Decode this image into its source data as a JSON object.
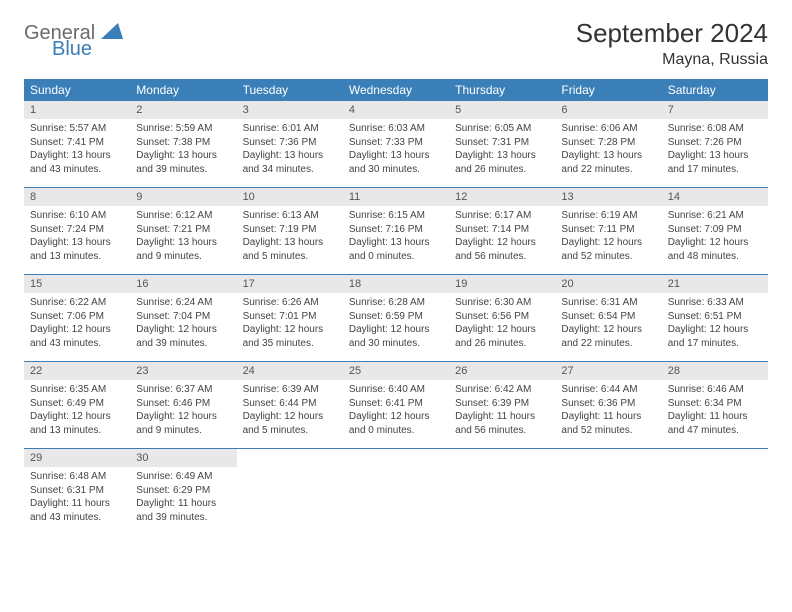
{
  "logo": {
    "word1": "General",
    "word2": "Blue"
  },
  "title": "September 2024",
  "location": "Mayna, Russia",
  "weekdays": [
    "Sunday",
    "Monday",
    "Tuesday",
    "Wednesday",
    "Thursday",
    "Friday",
    "Saturday"
  ],
  "colors": {
    "header_bg": "#3b7fb8",
    "header_text": "#ffffff",
    "daynum_bg": "#e8e8e8",
    "week_border": "#3b7fb8",
    "logo_gray": "#6b6b6b",
    "logo_blue": "#3b7fb8"
  },
  "weeks": [
    [
      {
        "n": "1",
        "sunrise": "Sunrise: 5:57 AM",
        "sunset": "Sunset: 7:41 PM",
        "day1": "Daylight: 13 hours",
        "day2": "and 43 minutes."
      },
      {
        "n": "2",
        "sunrise": "Sunrise: 5:59 AM",
        "sunset": "Sunset: 7:38 PM",
        "day1": "Daylight: 13 hours",
        "day2": "and 39 minutes."
      },
      {
        "n": "3",
        "sunrise": "Sunrise: 6:01 AM",
        "sunset": "Sunset: 7:36 PM",
        "day1": "Daylight: 13 hours",
        "day2": "and 34 minutes."
      },
      {
        "n": "4",
        "sunrise": "Sunrise: 6:03 AM",
        "sunset": "Sunset: 7:33 PM",
        "day1": "Daylight: 13 hours",
        "day2": "and 30 minutes."
      },
      {
        "n": "5",
        "sunrise": "Sunrise: 6:05 AM",
        "sunset": "Sunset: 7:31 PM",
        "day1": "Daylight: 13 hours",
        "day2": "and 26 minutes."
      },
      {
        "n": "6",
        "sunrise": "Sunrise: 6:06 AM",
        "sunset": "Sunset: 7:28 PM",
        "day1": "Daylight: 13 hours",
        "day2": "and 22 minutes."
      },
      {
        "n": "7",
        "sunrise": "Sunrise: 6:08 AM",
        "sunset": "Sunset: 7:26 PM",
        "day1": "Daylight: 13 hours",
        "day2": "and 17 minutes."
      }
    ],
    [
      {
        "n": "8",
        "sunrise": "Sunrise: 6:10 AM",
        "sunset": "Sunset: 7:24 PM",
        "day1": "Daylight: 13 hours",
        "day2": "and 13 minutes."
      },
      {
        "n": "9",
        "sunrise": "Sunrise: 6:12 AM",
        "sunset": "Sunset: 7:21 PM",
        "day1": "Daylight: 13 hours",
        "day2": "and 9 minutes."
      },
      {
        "n": "10",
        "sunrise": "Sunrise: 6:13 AM",
        "sunset": "Sunset: 7:19 PM",
        "day1": "Daylight: 13 hours",
        "day2": "and 5 minutes."
      },
      {
        "n": "11",
        "sunrise": "Sunrise: 6:15 AM",
        "sunset": "Sunset: 7:16 PM",
        "day1": "Daylight: 13 hours",
        "day2": "and 0 minutes."
      },
      {
        "n": "12",
        "sunrise": "Sunrise: 6:17 AM",
        "sunset": "Sunset: 7:14 PM",
        "day1": "Daylight: 12 hours",
        "day2": "and 56 minutes."
      },
      {
        "n": "13",
        "sunrise": "Sunrise: 6:19 AM",
        "sunset": "Sunset: 7:11 PM",
        "day1": "Daylight: 12 hours",
        "day2": "and 52 minutes."
      },
      {
        "n": "14",
        "sunrise": "Sunrise: 6:21 AM",
        "sunset": "Sunset: 7:09 PM",
        "day1": "Daylight: 12 hours",
        "day2": "and 48 minutes."
      }
    ],
    [
      {
        "n": "15",
        "sunrise": "Sunrise: 6:22 AM",
        "sunset": "Sunset: 7:06 PM",
        "day1": "Daylight: 12 hours",
        "day2": "and 43 minutes."
      },
      {
        "n": "16",
        "sunrise": "Sunrise: 6:24 AM",
        "sunset": "Sunset: 7:04 PM",
        "day1": "Daylight: 12 hours",
        "day2": "and 39 minutes."
      },
      {
        "n": "17",
        "sunrise": "Sunrise: 6:26 AM",
        "sunset": "Sunset: 7:01 PM",
        "day1": "Daylight: 12 hours",
        "day2": "and 35 minutes."
      },
      {
        "n": "18",
        "sunrise": "Sunrise: 6:28 AM",
        "sunset": "Sunset: 6:59 PM",
        "day1": "Daylight: 12 hours",
        "day2": "and 30 minutes."
      },
      {
        "n": "19",
        "sunrise": "Sunrise: 6:30 AM",
        "sunset": "Sunset: 6:56 PM",
        "day1": "Daylight: 12 hours",
        "day2": "and 26 minutes."
      },
      {
        "n": "20",
        "sunrise": "Sunrise: 6:31 AM",
        "sunset": "Sunset: 6:54 PM",
        "day1": "Daylight: 12 hours",
        "day2": "and 22 minutes."
      },
      {
        "n": "21",
        "sunrise": "Sunrise: 6:33 AM",
        "sunset": "Sunset: 6:51 PM",
        "day1": "Daylight: 12 hours",
        "day2": "and 17 minutes."
      }
    ],
    [
      {
        "n": "22",
        "sunrise": "Sunrise: 6:35 AM",
        "sunset": "Sunset: 6:49 PM",
        "day1": "Daylight: 12 hours",
        "day2": "and 13 minutes."
      },
      {
        "n": "23",
        "sunrise": "Sunrise: 6:37 AM",
        "sunset": "Sunset: 6:46 PM",
        "day1": "Daylight: 12 hours",
        "day2": "and 9 minutes."
      },
      {
        "n": "24",
        "sunrise": "Sunrise: 6:39 AM",
        "sunset": "Sunset: 6:44 PM",
        "day1": "Daylight: 12 hours",
        "day2": "and 5 minutes."
      },
      {
        "n": "25",
        "sunrise": "Sunrise: 6:40 AM",
        "sunset": "Sunset: 6:41 PM",
        "day1": "Daylight: 12 hours",
        "day2": "and 0 minutes."
      },
      {
        "n": "26",
        "sunrise": "Sunrise: 6:42 AM",
        "sunset": "Sunset: 6:39 PM",
        "day1": "Daylight: 11 hours",
        "day2": "and 56 minutes."
      },
      {
        "n": "27",
        "sunrise": "Sunrise: 6:44 AM",
        "sunset": "Sunset: 6:36 PM",
        "day1": "Daylight: 11 hours",
        "day2": "and 52 minutes."
      },
      {
        "n": "28",
        "sunrise": "Sunrise: 6:46 AM",
        "sunset": "Sunset: 6:34 PM",
        "day1": "Daylight: 11 hours",
        "day2": "and 47 minutes."
      }
    ],
    [
      {
        "n": "29",
        "sunrise": "Sunrise: 6:48 AM",
        "sunset": "Sunset: 6:31 PM",
        "day1": "Daylight: 11 hours",
        "day2": "and 43 minutes."
      },
      {
        "n": "30",
        "sunrise": "Sunrise: 6:49 AM",
        "sunset": "Sunset: 6:29 PM",
        "day1": "Daylight: 11 hours",
        "day2": "and 39 minutes."
      },
      null,
      null,
      null,
      null,
      null
    ]
  ]
}
